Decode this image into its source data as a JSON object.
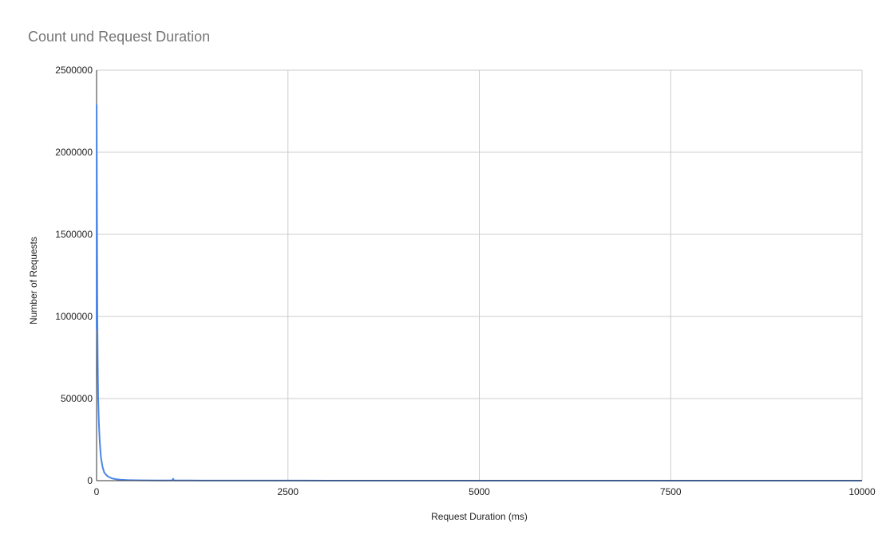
{
  "chart_data": {
    "type": "line",
    "title": "Count und Request Duration",
    "xlabel": "Request Duration (ms)",
    "ylabel": "Number of Requests",
    "xlim": [
      0,
      10000
    ],
    "ylim": [
      0,
      2500000
    ],
    "x_ticks": [
      "0",
      "2500",
      "5000",
      "7500",
      "10000"
    ],
    "y_ticks": [
      "0",
      "500000",
      "1000000",
      "1500000",
      "2000000",
      "2500000"
    ],
    "grid": true,
    "legend": "none",
    "series": [
      {
        "color": "#4a86e8",
        "x": [
          0,
          1,
          2,
          4,
          6,
          8,
          10,
          15,
          20,
          30,
          40,
          50,
          60,
          80,
          100,
          125,
          150,
          200,
          250,
          300,
          400,
          500,
          600,
          800,
          990,
          1000,
          1010,
          1200,
          1500,
          2000,
          3000,
          5000,
          7500,
          10000
        ],
        "y": [
          920000,
          2290000,
          2100000,
          1800000,
          1500000,
          1250000,
          1000000,
          700000,
          520000,
          350000,
          250000,
          180000,
          130000,
          80000,
          50000,
          35000,
          25000,
          14000,
          9000,
          6000,
          3500,
          2500,
          1800,
          1200,
          1500,
          12000,
          1500,
          900,
          700,
          500,
          300,
          150,
          80,
          50
        ]
      }
    ]
  }
}
